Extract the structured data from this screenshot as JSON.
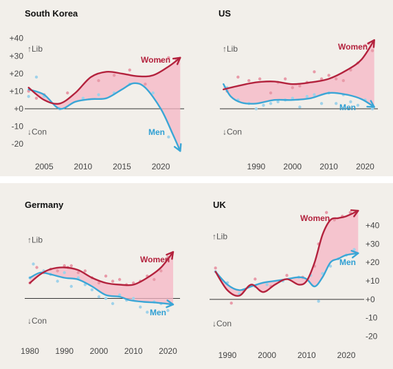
{
  "colors": {
    "women": "#b3223d",
    "men": "#3aa6d6",
    "gap_fill": "#f6b6c4",
    "women_dot": "#e89aa8",
    "men_dot": "#9fd2ea",
    "zero_line": "#333333",
    "background": "#f2efea"
  },
  "chart_data": [
    {
      "type": "line",
      "title": "South Korea",
      "lib_label": "↑Lib",
      "con_label": "↓Con",
      "x_ticks": [
        "2005",
        "2010",
        "2015",
        "2020"
      ],
      "y_ticks": [
        "+40",
        "+30",
        "+20",
        "+10",
        "+0",
        "-10",
        "-20"
      ],
      "y_axis_side": "left",
      "xlim": [
        2002.5,
        2023
      ],
      "ylim": [
        -25,
        43
      ],
      "series": [
        {
          "name": "Women",
          "x": [
            2003,
            2005,
            2007,
            2009,
            2011,
            2013,
            2015,
            2017,
            2019,
            2021,
            2022.5
          ],
          "y": [
            12,
            5,
            3,
            9,
            18,
            21,
            20,
            18.5,
            19,
            24,
            29
          ]
        },
        {
          "name": "Men",
          "x": [
            2003,
            2005,
            2007,
            2009,
            2011,
            2013,
            2015,
            2016.5,
            2018,
            2020,
            2021.5,
            2022.5
          ],
          "y": [
            11,
            8,
            0,
            4,
            5.5,
            6,
            11,
            14.5,
            12,
            0,
            -14,
            -24
          ]
        }
      ],
      "women_points": {
        "x": [
          2003,
          2004,
          2005,
          2008,
          2012,
          2014,
          2016,
          2018,
          2020,
          2021,
          2022
        ],
        "y": [
          10,
          6,
          8,
          9,
          16,
          19,
          22,
          14,
          27,
          29,
          28
        ]
      },
      "men_points": {
        "x": [
          2003,
          2004,
          2005,
          2007,
          2010,
          2012,
          2014,
          2016,
          2019,
          2021
        ],
        "y": [
          7,
          18,
          7,
          0,
          6,
          8,
          9,
          14,
          9,
          -16
        ]
      }
    },
    {
      "type": "line",
      "title": "US",
      "lib_label": "↑Lib",
      "con_label": "↓Con",
      "x_ticks": [
        "1990",
        "2000",
        "2010",
        "2020"
      ],
      "y_ticks": [],
      "y_axis_side": "none",
      "xlim": [
        1980,
        2023.5
      ],
      "ylim": [
        -25,
        43
      ],
      "series": [
        {
          "name": "Women",
          "x": [
            1981,
            1985,
            1990,
            1995,
            2000,
            2005,
            2010,
            2015,
            2019,
            2022.5
          ],
          "y": [
            11,
            13,
            15,
            15.5,
            14,
            15,
            17,
            22,
            28,
            39
          ]
        },
        {
          "name": "Men",
          "x": [
            1981,
            1983,
            1986,
            1990,
            1995,
            2000,
            2005,
            2010,
            2015,
            2019,
            2022.5
          ],
          "y": [
            14,
            7,
            3.5,
            3,
            5,
            5,
            6,
            9,
            8,
            5.5,
            1
          ]
        }
      ],
      "women_points": {
        "x": [
          1982,
          1985,
          1988,
          1991,
          1994,
          1996,
          1998,
          2000,
          2002,
          2004,
          2006,
          2008,
          2010,
          2012,
          2014,
          2016,
          2018,
          2020,
          2021,
          2022
        ],
        "y": [
          10,
          18,
          16,
          17,
          9,
          15,
          17,
          12,
          13,
          15,
          21,
          17,
          19,
          17,
          16,
          22,
          26,
          36,
          37,
          33
        ]
      },
      "men_points": {
        "x": [
          1982,
          1985,
          1988,
          1990,
          1992,
          1994,
          1996,
          1998,
          2000,
          2002,
          2004,
          2006,
          2008,
          2010,
          2012,
          2014,
          2016,
          2018,
          2020,
          2022
        ],
        "y": [
          12,
          5,
          3,
          0,
          2,
          3,
          4,
          5,
          6,
          1,
          7,
          8,
          3,
          9,
          3,
          8,
          4,
          2,
          5,
          0
        ]
      }
    },
    {
      "type": "line",
      "title": "Germany",
      "lib_label": "↑Lib",
      "con_label": "↓Con",
      "x_ticks": [
        "1980",
        "1990",
        "2000",
        "2010",
        "2020"
      ],
      "y_ticks": [],
      "y_axis_side": "none",
      "xlim": [
        1978.5,
        2023.5
      ],
      "ylim": [
        -25,
        43
      ],
      "series": [
        {
          "name": "Women",
          "x": [
            1980,
            1983,
            1986,
            1990,
            1994,
            1998,
            2002,
            2006,
            2010,
            2014,
            2018,
            2021.5
          ],
          "y": [
            9,
            14,
            17,
            18,
            16.5,
            12,
            9,
            8,
            8,
            12,
            18,
            27
          ]
        },
        {
          "name": "Men",
          "x": [
            1980,
            1983,
            1986,
            1990,
            1994,
            1998,
            2002,
            2006,
            2009,
            2013,
            2017,
            2021.5
          ],
          "y": [
            12,
            15,
            14,
            12,
            11,
            7,
            2,
            1,
            -1,
            -2,
            -2.5,
            -3.5
          ]
        }
      ],
      "women_points": {
        "x": [
          1980,
          1982,
          1984,
          1986,
          1988,
          1990,
          1991,
          1992,
          1994,
          1996,
          1998,
          2000,
          2002,
          2004,
          2006,
          2008,
          2010,
          2012,
          2014,
          2016,
          2018,
          2020
        ],
        "y": [
          9,
          18,
          15,
          17,
          16,
          19,
          18,
          19,
          15,
          16,
          12,
          9,
          13,
          10,
          11,
          8,
          9,
          10,
          13,
          11,
          16,
          24
        ]
      },
      "men_points": {
        "x": [
          1980,
          1981,
          1984,
          1986,
          1988,
          1990,
          1992,
          1994,
          1996,
          1998,
          2000,
          2002,
          2004,
          2006,
          2008,
          2010,
          2012,
          2014,
          2016,
          2018,
          2020
        ],
        "y": [
          12,
          20,
          16,
          14,
          10,
          15,
          7,
          12,
          8,
          5,
          1,
          0,
          -3,
          2,
          -1,
          0,
          -5,
          -8,
          -2,
          -3,
          -7
        ]
      }
    },
    {
      "type": "line",
      "title": "UK",
      "lib_label": "↑Lib",
      "con_label": "↓Con",
      "x_ticks": [
        "1990",
        "2000",
        "2010",
        "2020"
      ],
      "y_ticks": [
        "+40",
        "+30",
        "+20",
        "+10",
        "+0",
        "-10",
        "-20"
      ],
      "y_axis_side": "right",
      "xlim": [
        1985.5,
        2024.5
      ],
      "ylim": [
        -25,
        51
      ],
      "series": [
        {
          "name": "Women",
          "x": [
            1987,
            1990,
            1993,
            1996,
            1999,
            2002,
            2005,
            2008,
            2010,
            2012,
            2014,
            2016,
            2018,
            2020,
            2023
          ],
          "y": [
            15,
            5,
            2,
            8,
            4,
            8,
            11,
            8,
            10,
            20,
            35,
            43,
            44,
            45,
            48
          ]
        },
        {
          "name": "Men",
          "x": [
            1987,
            1990,
            1993,
            1996,
            1999,
            2002,
            2005,
            2008,
            2010,
            2012,
            2014,
            2016,
            2018,
            2020,
            2023
          ],
          "y": [
            15,
            8,
            5,
            7,
            9,
            10,
            11,
            12,
            11,
            7,
            12,
            20,
            22,
            24,
            25
          ]
        }
      ],
      "women_points": {
        "x": [
          1987,
          1991,
          1994,
          1997,
          2001,
          2005,
          2009,
          2012,
          2013,
          2015,
          2017,
          2019,
          2021
        ],
        "y": [
          17,
          -2,
          5,
          11,
          7,
          13,
          12,
          18,
          30,
          47,
          43,
          45,
          47
        ]
      },
      "men_points": {
        "x": [
          1987,
          1990,
          1993,
          1997,
          2000,
          2004,
          2008,
          2011,
          2013,
          2014,
          2016,
          2018,
          2020,
          2022
        ],
        "y": [
          15,
          9,
          3,
          7,
          8,
          10,
          12,
          13,
          -1,
          14,
          18,
          22,
          24,
          27
        ]
      }
    }
  ]
}
